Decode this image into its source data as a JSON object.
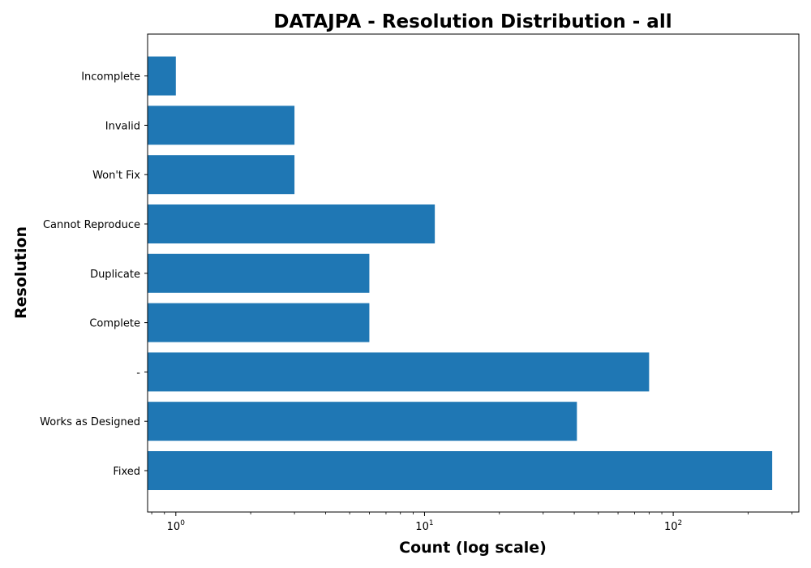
{
  "chart_data": {
    "type": "bar",
    "orientation": "horizontal",
    "title": "DATAJPA - Resolution Distribution - all",
    "xlabel": "Count (log scale)",
    "ylabel": "Resolution",
    "xscale": "log",
    "xlim": [
      0.77,
      320
    ],
    "categories": [
      "Fixed",
      "Works as Designed",
      "-",
      "Complete",
      "Duplicate",
      "Cannot Reproduce",
      "Won't Fix",
      "Invalid",
      "Incomplete"
    ],
    "values": [
      250,
      41,
      80,
      6,
      6,
      11,
      3,
      3,
      1
    ],
    "xticks": [
      {
        "base": "10",
        "exp": "0",
        "value": 1
      },
      {
        "base": "10",
        "exp": "1",
        "value": 10
      },
      {
        "base": "10",
        "exp": "2",
        "value": 100
      }
    ],
    "bar_color": "#1f77b4",
    "grid": false
  }
}
